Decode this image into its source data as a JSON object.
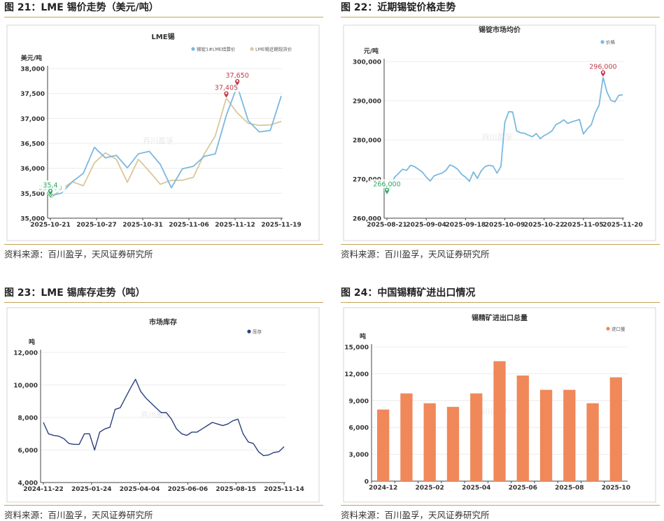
{
  "panels": [
    {
      "caption": "图 21：LME 锡价走势（美元/吨）",
      "source": "资料来源：百川盈孚，天风证券研究所"
    },
    {
      "caption": "图 22：近期锡锭价格走势",
      "source": "资料来源：百川盈孚，天风证券研究所"
    },
    {
      "caption": "图 23：LME 锡库存走势（吨）",
      "source": "资料来源：百川盈孚，天风证券研究所"
    },
    {
      "caption": "图 24：中国锡精矿进出口情况",
      "source": "资料来源：百川盈孚，天风证券研究所"
    }
  ],
  "watermark": "百川盈孚",
  "chart_data": [
    {
      "type": "line",
      "title": "LME锡",
      "ylabel": "美元/吨",
      "ylim": [
        35000,
        38000
      ],
      "yticks": [
        35000,
        35500,
        36000,
        36500,
        37000,
        37500,
        38000
      ],
      "xticklabels": [
        "2025-10-21",
        "2025-10-27",
        "2025-10-31",
        "2025-11-06",
        "2025-11-12",
        "2025-11-19"
      ],
      "legend_position": "top-right",
      "series": [
        {
          "name": "锡锭1#LME结算价",
          "color": "#7ab8e0",
          "values": [
            35450,
            35500,
            35730,
            35900,
            36420,
            36210,
            36260,
            36010,
            36290,
            36340,
            36080,
            35610,
            35990,
            36040,
            36240,
            36290,
            37060,
            37650,
            36950,
            36730,
            36760,
            37450
          ]
        },
        {
          "name": "LME锡近期现货价",
          "color": "#d8c89a",
          "values": [
            35400,
            35580,
            35730,
            35650,
            36110,
            36310,
            36180,
            35720,
            36180,
            35940,
            35680,
            35760,
            35760,
            35820,
            36290,
            36650,
            37405,
            37110,
            36900,
            36860,
            36870,
            36940
          ]
        }
      ],
      "annotations": [
        {
          "label": "35,400",
          "value": 35400
        },
        {
          "label": "35,4",
          "value": 35450
        },
        {
          "label": "37,405",
          "value": 37405
        },
        {
          "label": "37,650",
          "value": 37650
        }
      ]
    },
    {
      "type": "line",
      "title": "锡锭市场均价",
      "ylabel": "元/吨",
      "ylim": [
        260000,
        300000
      ],
      "yticks": [
        260000,
        270000,
        280000,
        290000,
        300000
      ],
      "xticklabels": [
        "2025-08-21",
        "2025-09-04",
        "2025-09-18",
        "2025-10-09",
        "2025-10-22",
        "2025-11-05",
        "2025-11-20"
      ],
      "legend_position": "top-right",
      "series": [
        {
          "name": "价格",
          "color": "#7ab8e0",
          "values": [
            266000,
            268500,
            270500,
            271500,
            272500,
            272200,
            273500,
            273200,
            272500,
            271800,
            270500,
            269500,
            270800,
            271200,
            271500,
            272200,
            273600,
            273200,
            272500,
            271200,
            270500,
            269400,
            271800,
            270200,
            272100,
            273200,
            273500,
            273300,
            271500,
            273200,
            284500,
            287200,
            287100,
            282300,
            281800,
            281700,
            281200,
            280800,
            281600,
            280300,
            281100,
            281600,
            282300,
            283900,
            284400,
            285100,
            284200,
            284600,
            284900,
            285200,
            281500,
            282800,
            283900,
            286900,
            288900,
            296000,
            292200,
            290100,
            289700,
            291400,
            291500
          ]
        }
      ],
      "annotations": [
        {
          "label": "266,000",
          "value": 266000
        },
        {
          "label": "296,000",
          "value": 296000
        }
      ]
    },
    {
      "type": "line",
      "title": "市场库存",
      "ylabel": "吨",
      "ylim": [
        4000,
        12000
      ],
      "yticks": [
        4000,
        6000,
        8000,
        10000,
        12000
      ],
      "xticklabels": [
        "2024-11-22",
        "2025-01-24",
        "2025-04-04",
        "2025-06-06",
        "2025-08-15",
        "2025-11-14"
      ],
      "legend_position": "top-right",
      "series": [
        {
          "name": "库存",
          "color": "#2a3f7e",
          "values": [
            7700,
            7000,
            6900,
            6850,
            6700,
            6400,
            6350,
            6350,
            7000,
            7000,
            6000,
            7100,
            7300,
            7400,
            8500,
            8600,
            9200,
            9800,
            10350,
            9600,
            9200,
            8900,
            8600,
            8300,
            8300,
            7900,
            7300,
            7000,
            6900,
            7100,
            7100,
            7300,
            7500,
            7700,
            7600,
            7500,
            7600,
            7800,
            7900,
            7000,
            6500,
            6400,
            5900,
            5650,
            5700,
            5850,
            5900,
            6200
          ]
        }
      ]
    },
    {
      "type": "bar",
      "title": "锡精矿进出口总量",
      "ylabel": "吨",
      "ylim": [
        0,
        15000
      ],
      "yticks": [
        0,
        3000,
        6000,
        9000,
        12000,
        15000
      ],
      "categories": [
        "2024-12",
        "2025-01",
        "2025-02",
        "2025-03",
        "2025-04",
        "2025-05",
        "2025-06",
        "2025-07",
        "2025-08",
        "2025-09",
        "2025-10"
      ],
      "xticklabels": [
        "2024-12",
        "2025-02",
        "2025-04",
        "2025-06",
        "2025-08",
        "2025-10"
      ],
      "legend_position": "top-right",
      "series": [
        {
          "name": "进口量",
          "color": "#f0885a",
          "values": [
            8000,
            9800,
            8700,
            8300,
            9800,
            13400,
            11800,
            10200,
            10200,
            8700,
            11600
          ]
        }
      ]
    }
  ]
}
